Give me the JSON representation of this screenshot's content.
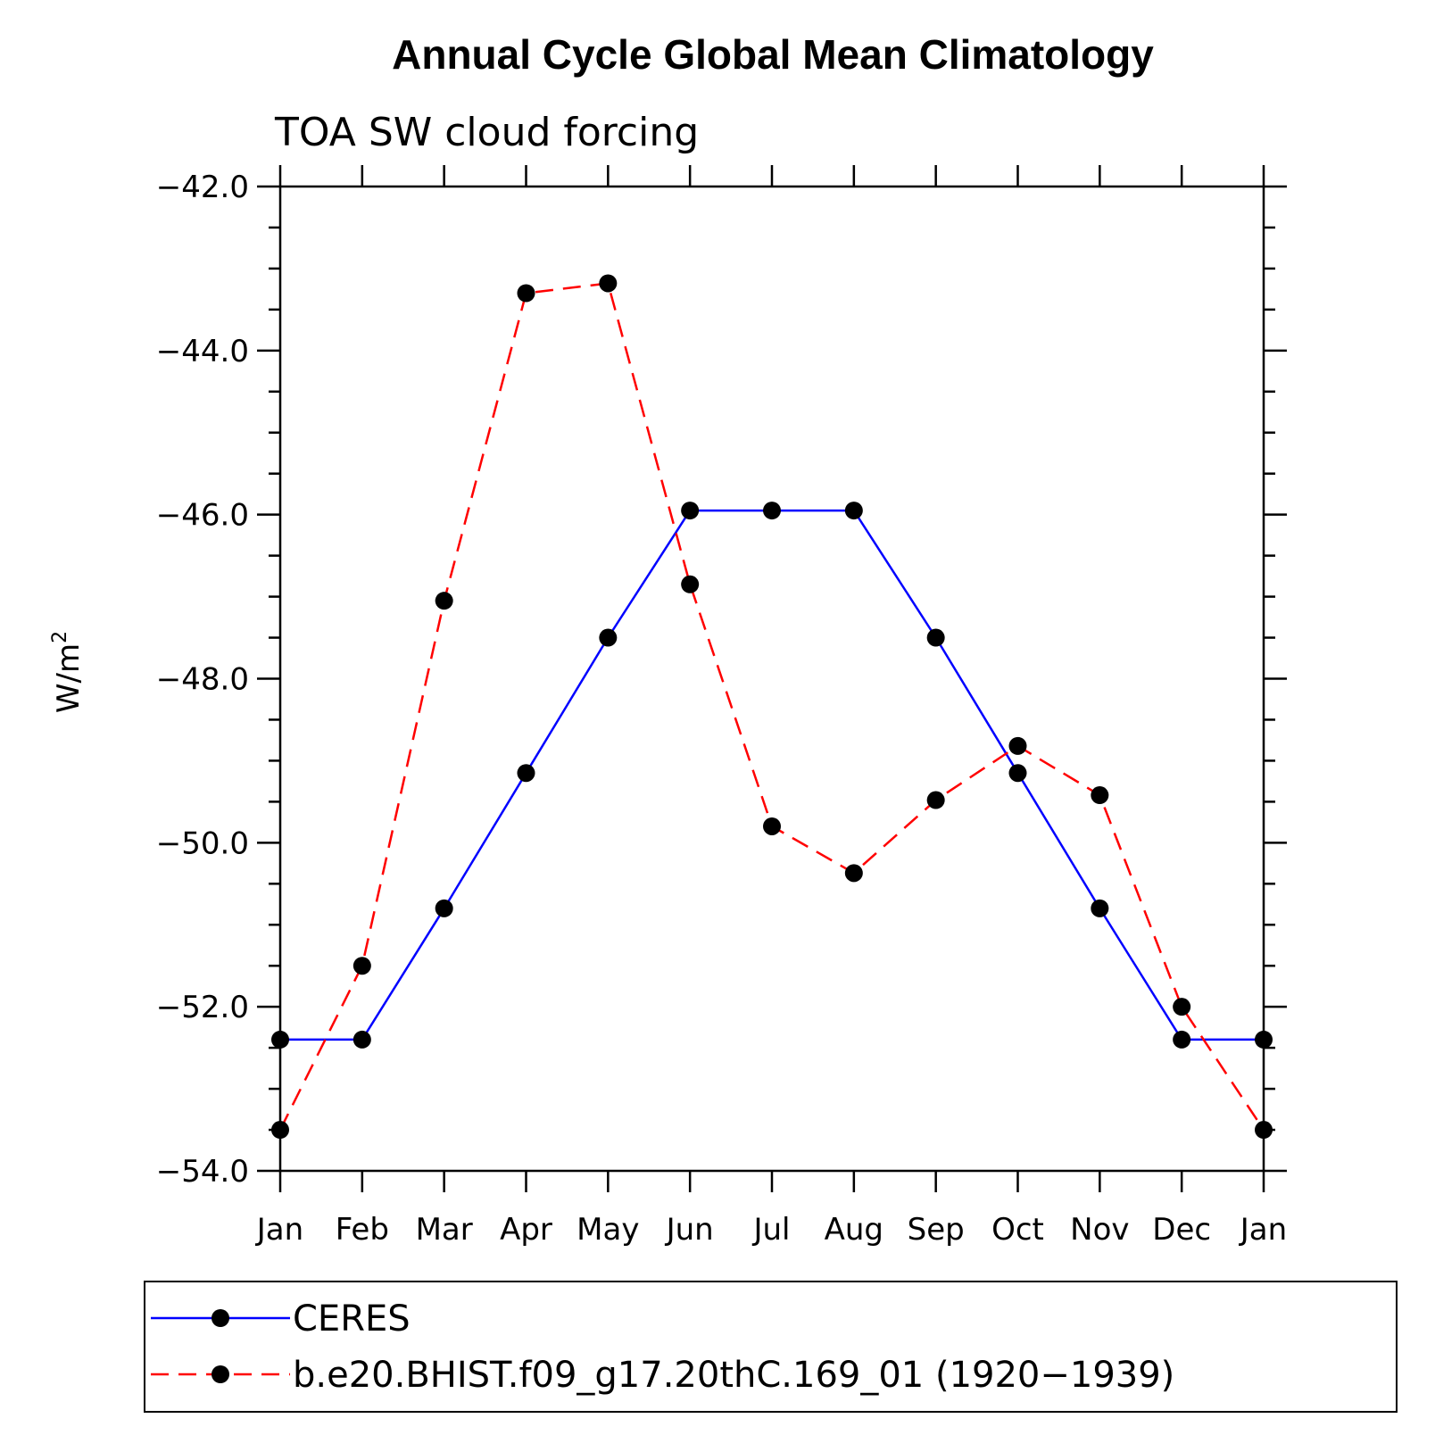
{
  "chart_data": {
    "type": "line",
    "title": "Annual Cycle Global Mean Climatology",
    "subtitle": "TOA SW cloud forcing",
    "ylabel": "W/m",
    "ylabel_superscript": "2",
    "xlabel": "",
    "categories": [
      "Jan",
      "Feb",
      "Mar",
      "Apr",
      "May",
      "Jun",
      "Jul",
      "Aug",
      "Sep",
      "Oct",
      "Nov",
      "Dec",
      "Jan"
    ],
    "ylim": [
      -54.0,
      -42.0
    ],
    "yticks": [
      "-42.0",
      "-44.0",
      "-46.0",
      "-48.0",
      "-50.0",
      "-52.0",
      "-54.0"
    ],
    "ytick_values": [
      -42.0,
      -44.0,
      -46.0,
      -48.0,
      -50.0,
      -52.0,
      -54.0
    ],
    "grid": false,
    "legend_position": "bottom",
    "series": [
      {
        "name": "CERES",
        "color": "#0000ff",
        "dash": "solid",
        "marker": "filled-circle",
        "values": [
          -52.4,
          -52.4,
          -50.8,
          -49.15,
          -47.5,
          -45.95,
          -45.95,
          -45.95,
          -47.5,
          -49.15,
          -50.8,
          -52.4,
          -52.4
        ]
      },
      {
        "name": "b.e20.BHIST.f09_g17.20thC.169_01 (1920−1939)",
        "color": "#ff0000",
        "dash": "dashed",
        "marker": "filled-circle",
        "values": [
          -53.5,
          -51.5,
          -47.05,
          -43.3,
          -43.18,
          -46.85,
          -49.8,
          -50.37,
          -49.48,
          -48.82,
          -49.42,
          -52.0,
          -53.5
        ]
      }
    ]
  }
}
